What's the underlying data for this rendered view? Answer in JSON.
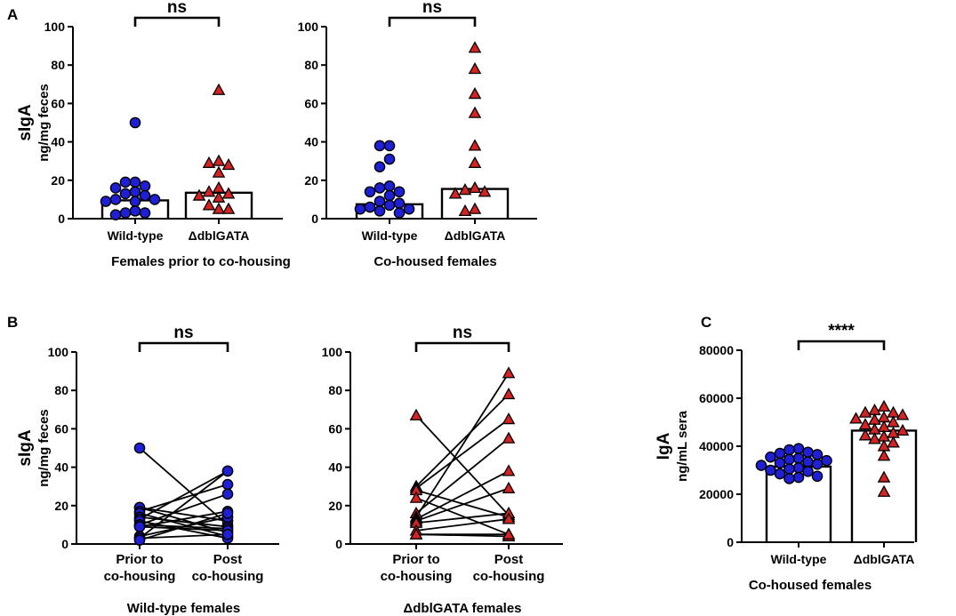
{
  "colors": {
    "wild_type": "#1f1fd6",
    "knockout": "#d42323",
    "stroke": "#000000"
  },
  "chart_data": [
    {
      "panel": "A",
      "type": "scatter",
      "ylabel": "sIgA",
      "ylabel2": "ng/mg feces",
      "ylim": [
        0,
        100
      ],
      "yticks": [
        0,
        20,
        40,
        60,
        80,
        100
      ],
      "xlabel": "Females prior to co-housing",
      "categories": [
        "Wild-type",
        "ΔdblGATA"
      ],
      "significance": "ns",
      "series": [
        {
          "name": "Wild-type",
          "marker": "circle",
          "bar": 9.5,
          "values": [
            50,
            19,
            19,
            17,
            16,
            14,
            13,
            12,
            10,
            10,
            9,
            9,
            4,
            3,
            3,
            2
          ]
        },
        {
          "name": "ΔdblGATA",
          "marker": "triangle",
          "bar": 13.5,
          "values": [
            67,
            30,
            29,
            28,
            24,
            16,
            14,
            13,
            12,
            11,
            7,
            5,
            5
          ]
        }
      ]
    },
    {
      "panel": "A2",
      "type": "scatter",
      "ylim": [
        0,
        100
      ],
      "yticks": [
        0,
        20,
        40,
        60,
        80,
        100
      ],
      "xlabel": "Co-housed females",
      "categories": [
        "Wild-type",
        "ΔdblGATA"
      ],
      "significance": "ns",
      "series": [
        {
          "name": "Wild-type",
          "marker": "circle",
          "bar": 7.5,
          "values": [
            38,
            38,
            31,
            27,
            17,
            16,
            14,
            14,
            12,
            9,
            8,
            7,
            6,
            5,
            5,
            4,
            3
          ]
        },
        {
          "name": "ΔdblGATA",
          "marker": "triangle",
          "bar": 15.5,
          "values": [
            89,
            78,
            65,
            55,
            38,
            29,
            16,
            15,
            14,
            13,
            5,
            4
          ]
        }
      ]
    },
    {
      "panel": "B",
      "type": "line",
      "ylabel": "sIgA",
      "ylabel2": "ng/mg feces",
      "ylim": [
        0,
        100
      ],
      "yticks": [
        0,
        20,
        40,
        60,
        80,
        100
      ],
      "xlabel": "Wild-type females",
      "categories": [
        "Prior to|co-housing",
        "Post|co-housing"
      ],
      "significance": "ns",
      "marker": "circle",
      "series_color": "wild_type",
      "pairs": [
        [
          50,
          10
        ],
        [
          19,
          12
        ],
        [
          19,
          6
        ],
        [
          17,
          31
        ],
        [
          16,
          4
        ],
        [
          14,
          9
        ],
        [
          13,
          38
        ],
        [
          12,
          3
        ],
        [
          10,
          26
        ],
        [
          10,
          8
        ],
        [
          9,
          17
        ],
        [
          9,
          7
        ],
        [
          4,
          14
        ],
        [
          3,
          38
        ],
        [
          3,
          5
        ],
        [
          2,
          16
        ]
      ]
    },
    {
      "panel": "B2",
      "type": "line",
      "ylim": [
        0,
        100
      ],
      "yticks": [
        0,
        20,
        40,
        60,
        80,
        100
      ],
      "xlabel": "ΔdblGATA females",
      "categories": [
        "Prior to|co-housing",
        "Post|co-housing"
      ],
      "significance": "ns",
      "marker": "triangle",
      "series_color": "knockout",
      "pairs": [
        [
          67,
          15
        ],
        [
          30,
          78
        ],
        [
          29,
          65
        ],
        [
          28,
          14
        ],
        [
          24,
          5
        ],
        [
          16,
          55
        ],
        [
          14,
          89
        ],
        [
          13,
          38
        ],
        [
          12,
          29
        ],
        [
          11,
          16
        ],
        [
          7,
          13
        ],
        [
          5,
          4
        ],
        [
          5,
          5
        ]
      ]
    },
    {
      "panel": "C",
      "type": "scatter",
      "ylabel": "IgA",
      "ylabel2": "ng/mL sera",
      "ylim": [
        0,
        80000
      ],
      "yticks": [
        0,
        20000,
        40000,
        60000,
        80000
      ],
      "xlabel": "Co-housed females",
      "categories": [
        "Wild-type",
        "ΔdblGATA"
      ],
      "significance": "****",
      "series": [
        {
          "name": "Wild-type",
          "marker": "circle",
          "bar": 31500,
          "values": [
            39000,
            38500,
            37500,
            37000,
            36500,
            35500,
            35000,
            34500,
            34000,
            33500,
            33000,
            32500,
            32000,
            31000,
            30500,
            30000,
            29500,
            28500,
            27500,
            27000,
            26500
          ]
        },
        {
          "name": "ΔdblGATA",
          "marker": "triangle",
          "bar": 46500,
          "values": [
            56500,
            55000,
            54000,
            54000,
            53000,
            52000,
            51500,
            51000,
            50000,
            49000,
            48000,
            47000,
            46500,
            45500,
            44500,
            44000,
            43000,
            41500,
            40000,
            36000,
            27000,
            21000
          ]
        }
      ]
    }
  ],
  "panel_labels": {
    "a": "A",
    "b": "B",
    "c": "C"
  }
}
